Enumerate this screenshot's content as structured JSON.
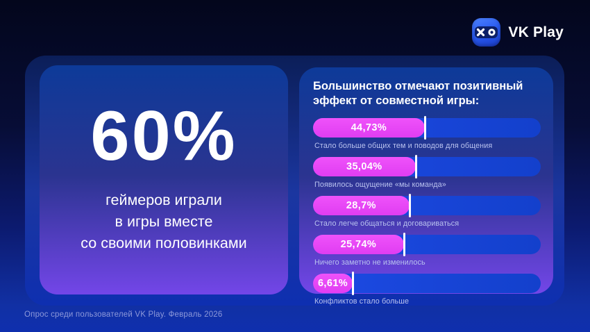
{
  "header": {
    "logo_text": "VK Play",
    "logo_icon": "vk-play-xo-gamepad"
  },
  "left_card": {
    "stat_value": "60%",
    "stat_caption_lines": [
      "геймеров играли",
      "в игры вместе",
      "со своими половинками"
    ]
  },
  "right_card": {
    "title_line1": "Большинство отмечают позитивный",
    "title_line2": "эффект от совместной игры:"
  },
  "chart_data": {
    "type": "bar",
    "orientation": "horizontal",
    "title": "Большинство отмечают позитивный эффект от совместной игры:",
    "categories": [
      "Стало больше общих тем и поводов для общения",
      "Появилось ощущение «мы команда»",
      "Стало легче общаться и договариваться",
      "Ничего заметно не изменилось",
      "Конфликтов стало больше"
    ],
    "values": [
      44.73,
      35.04,
      28.7,
      25.74,
      6.61
    ],
    "value_labels": [
      "44,73%",
      "35,04%",
      "28,7%",
      "25,74%",
      "6,61%"
    ],
    "fill_percents": [
      49,
      45,
      42.3,
      39.9,
      17.4
    ],
    "xlim": [
      0,
      100
    ],
    "legend": "none",
    "grid": false,
    "colors": {
      "fill": "#e03df2",
      "track": "#1746d8",
      "separator": "#ffffff"
    }
  },
  "footer": {
    "caption": "Опрос среди пользователей VK Play. Февраль 2026"
  }
}
